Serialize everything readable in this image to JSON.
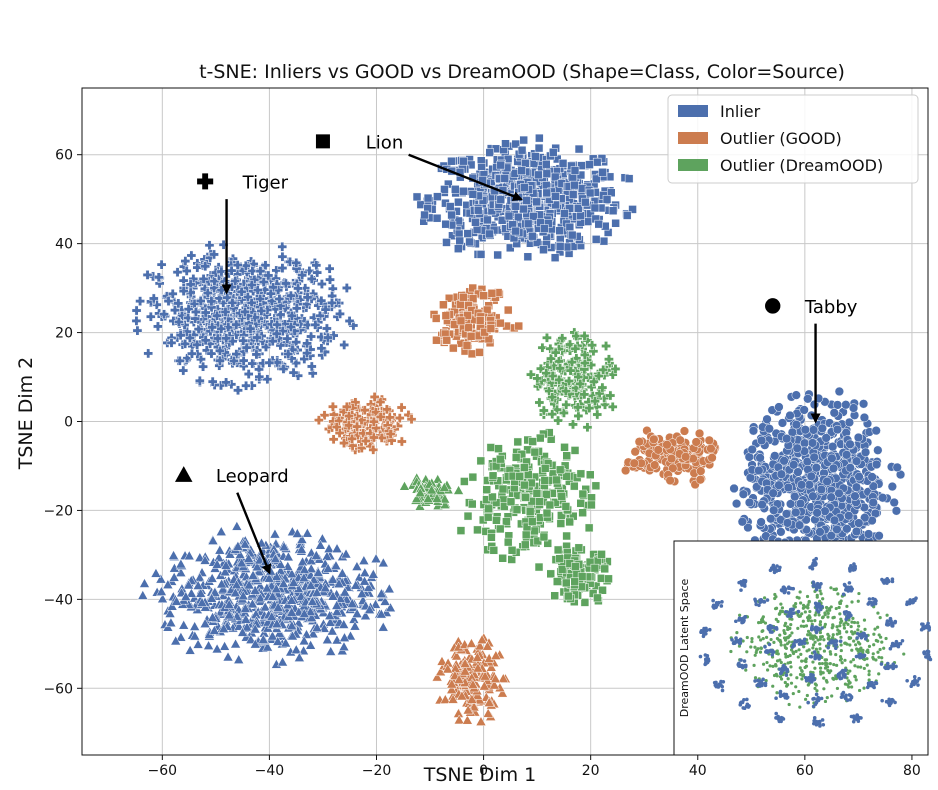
{
  "chart_data": {
    "type": "scatter",
    "title": "t-SNE: Inliers vs GOOD vs DreamOOD (Shape=Class, Color=Source)",
    "xlabel": "TSNE Dim 1",
    "ylabel": "TSNE Dim 2",
    "xlim": [
      -75,
      83
    ],
    "ylim": [
      -75,
      75
    ],
    "xticks": [
      -60,
      -40,
      -20,
      0,
      20,
      40,
      60,
      80
    ],
    "yticks": [
      -60,
      -40,
      -20,
      0,
      20,
      40,
      60
    ],
    "grid": true,
    "legend_position": "top-right",
    "series": [
      {
        "name": "Inlier",
        "color": "#4c6fad"
      },
      {
        "name": "Outlier (GOOD)",
        "color": "#cc7c4f"
      },
      {
        "name": "Outlier (DreamOOD)",
        "color": "#5ea35e"
      }
    ],
    "clusters": [
      {
        "series": "Inlier",
        "shape": "square",
        "cx": 8,
        "cy": 50,
        "rx": 21,
        "ry": 14,
        "n": 700
      },
      {
        "series": "Inlier",
        "shape": "plus",
        "cx": -45,
        "cy": 24,
        "rx": 21,
        "ry": 17,
        "n": 650
      },
      {
        "series": "Inlier",
        "shape": "triangle",
        "cx": -40,
        "cy": -39,
        "rx": 24,
        "ry": 16,
        "n": 700
      },
      {
        "series": "Inlier",
        "shape": "circle",
        "cx": 62,
        "cy": -14,
        "rx": 16,
        "ry": 22,
        "n": 750
      },
      {
        "series": "Outlier (GOOD)",
        "shape": "square",
        "cx": -2,
        "cy": 23,
        "rx": 9,
        "ry": 8,
        "n": 160
      },
      {
        "series": "Outlier (GOOD)",
        "shape": "plus",
        "cx": -22,
        "cy": -1,
        "rx": 9,
        "ry": 7,
        "n": 160
      },
      {
        "series": "Outlier (GOOD)",
        "shape": "circle",
        "cx": 35,
        "cy": -8,
        "rx": 10,
        "ry": 7,
        "n": 170
      },
      {
        "series": "Outlier (GOOD)",
        "shape": "triangle",
        "cx": -2,
        "cy": -58,
        "rx": 7,
        "ry": 10,
        "n": 160
      },
      {
        "series": "Outlier (DreamOOD)",
        "shape": "plus",
        "cx": 17,
        "cy": 10,
        "rx": 9,
        "ry": 12,
        "n": 180
      },
      {
        "series": "Outlier (DreamOOD)",
        "shape": "square",
        "cx": 8,
        "cy": -17,
        "rx": 14,
        "ry": 16,
        "n": 260
      },
      {
        "series": "Outlier (DreamOOD)",
        "shape": "square",
        "cx": 18,
        "cy": -35,
        "rx": 6,
        "ry": 7,
        "n": 110
      },
      {
        "series": "Outlier (DreamOOD)",
        "shape": "triangle",
        "cx": -10,
        "cy": -16,
        "rx": 6,
        "ry": 4,
        "n": 60
      }
    ],
    "annotations": [
      {
        "label": "Lion",
        "marker": "square",
        "marker_x": -30,
        "marker_y": 63,
        "text_x": -22,
        "text_y": 63,
        "arrow_from": [
          -14,
          60
        ],
        "arrow_to": [
          7,
          50
        ]
      },
      {
        "label": "Tiger",
        "marker": "plus",
        "marker_x": -52,
        "marker_y": 54,
        "text_x": -45,
        "text_y": 54,
        "arrow_from": [
          -48,
          50
        ],
        "arrow_to": [
          -48,
          29
        ]
      },
      {
        "label": "Tabby",
        "marker": "circle",
        "marker_x": 54,
        "marker_y": 26,
        "text_x": 60,
        "text_y": 26,
        "arrow_from": [
          62,
          22
        ],
        "arrow_to": [
          62,
          0
        ]
      },
      {
        "label": "Leopard",
        "marker": "triangle",
        "marker_x": -56,
        "marker_y": -12,
        "text_x": -50,
        "text_y": -12,
        "arrow_from": [
          -46,
          -16
        ],
        "arrow_to": [
          -40,
          -34
        ]
      }
    ],
    "inset": {
      "label": "DreamOOD Latent Space",
      "inlier_color": "#4c6fad",
      "outlier_color": "#5ea35e"
    }
  }
}
